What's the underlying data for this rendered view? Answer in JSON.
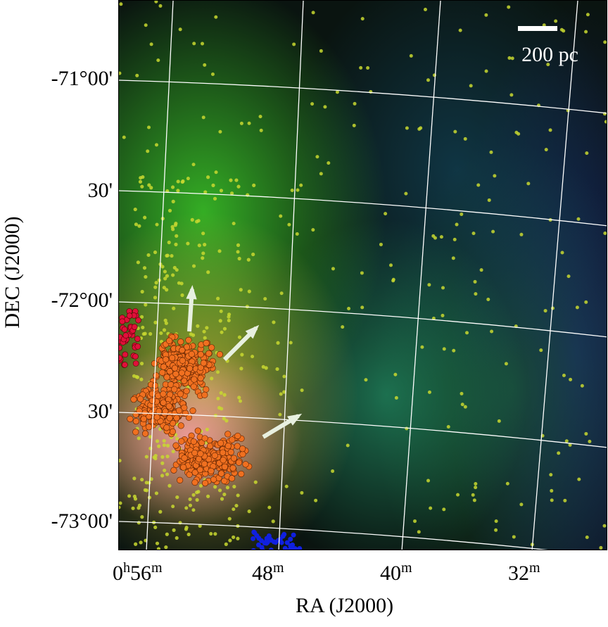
{
  "chart_data": {
    "type": "scatter",
    "background": "false-color RGB astronomical image",
    "xlabel": "RA (J2000)",
    "ylabel": "DEC (J2000)",
    "xticks": [
      {
        "h": "0",
        "hs": "h",
        "m": "56",
        "ms": "m"
      },
      {
        "m": "48",
        "ms": "m"
      },
      {
        "m": "40",
        "ms": "m"
      },
      {
        "m": "32",
        "ms": "m"
      }
    ],
    "yticks": [
      "-71°00'",
      "30'",
      "-72°00'",
      "30'",
      "-73°00'"
    ],
    "grid": true,
    "scale_bar": "200 pc",
    "series_colors": {
      "yellow_sources": "#c8d830",
      "orange_sources": "#f07020",
      "red_sources": "#e0103a",
      "blue_sources": "#1020e0",
      "grid": "#ffffff",
      "arrows": "#e8f0e0"
    }
  }
}
